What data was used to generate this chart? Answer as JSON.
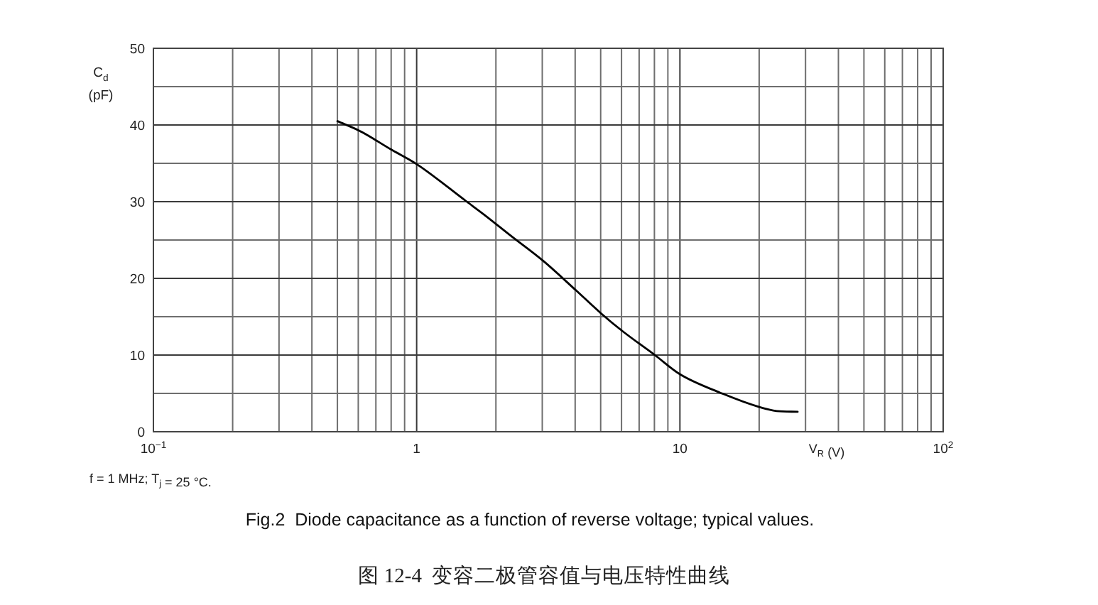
{
  "chart_data": {
    "type": "line",
    "title": "Fig.2  Diode capacitance as a function of reverse voltage; typical values.",
    "subtitle": "图 12-4  变容二极管容值与电压特性曲线",
    "xlabel": "V$_{R}$ (V)",
    "ylabel": "C$_{d}$ (pF)",
    "annotations": [
      "f = 1 MHz; T$_{j}$ = 25 °C."
    ],
    "log": "x",
    "xlim": [
      0.1,
      100
    ],
    "xticks": [
      {
        "value": 0.1,
        "label": "10$^{−1}$"
      },
      {
        "value": 0.2,
        "label": null
      },
      {
        "value": 0.3,
        "label": null
      },
      {
        "value": 0.4,
        "label": null
      },
      {
        "value": 0.5,
        "label": null
      },
      {
        "value": 0.6,
        "label": null
      },
      {
        "value": 0.7,
        "label": null
      },
      {
        "value": 0.8,
        "label": null
      },
      {
        "value": 0.9,
        "label": null
      },
      1,
      {
        "value": 2,
        "label": null
      },
      {
        "value": 3,
        "label": null
      },
      {
        "value": 4,
        "label": null
      },
      {
        "value": 5,
        "label": null
      },
      {
        "value": 6,
        "label": null
      },
      {
        "value": 7,
        "label": null
      },
      {
        "value": 8,
        "label": null
      },
      {
        "value": 9,
        "label": null
      },
      10,
      {
        "value": 20,
        "label": null
      },
      {
        "value": 30,
        "label": null
      },
      {
        "value": 40,
        "label": null
      },
      {
        "value": 50,
        "label": null
      },
      {
        "value": 60,
        "label": null
      },
      {
        "value": 70,
        "label": null
      },
      {
        "value": 80,
        "label": null
      },
      {
        "value": 90,
        "label": null
      },
      {
        "value": 100,
        "label": "10$^{2}$"
      }
    ],
    "ylim": [
      0,
      50
    ],
    "yticks": [
      0,
      {
        "value": 5,
        "label": null
      },
      10,
      {
        "value": 15,
        "label": null
      },
      20,
      {
        "value": 25,
        "label": null
      },
      30,
      {
        "value": 35,
        "label": null
      },
      40,
      {
        "value": 45,
        "label": null
      },
      50
    ],
    "grid": true,
    "x": [
      0.5,
      0.61,
      0.8,
      1.0,
      1.55,
      1.79,
      2.29,
      3.02,
      4.04,
      5.03,
      6.06,
      8.03,
      10,
      14.2,
      20.1,
      23.3,
      28
    ],
    "series": [
      {
        "color": "#000000",
        "values": [
          40.5,
          39.2,
          36.8,
          34.9,
          30.0,
          28.4,
          25.5,
          22.3,
          18.4,
          15.4,
          13.1,
          10.0,
          7.5,
          5.1,
          3.2,
          2.7,
          2.6
        ]
      }
    ]
  }
}
